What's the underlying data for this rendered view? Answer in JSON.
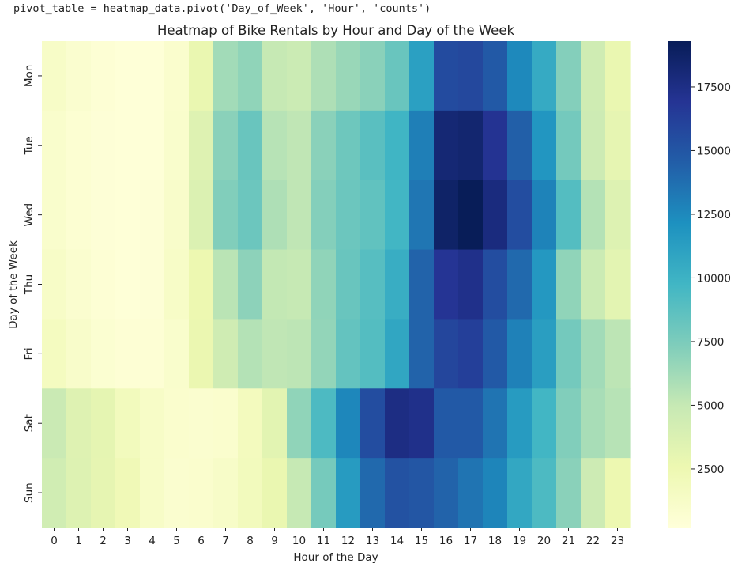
{
  "code": {
    "line": "pivot_table = heatmap_data.pivot('Day_of_Week', 'Hour', 'counts')"
  },
  "chart_data": {
    "type": "heatmap",
    "title": "Heatmap of Bike Rentals by Hour and Day of the Week",
    "xlabel": "Hour of the Day",
    "ylabel": "Day of the Week",
    "x_categories": [
      "0",
      "1",
      "2",
      "3",
      "4",
      "5",
      "6",
      "7",
      "8",
      "9",
      "10",
      "11",
      "12",
      "13",
      "14",
      "15",
      "16",
      "17",
      "18",
      "19",
      "20",
      "21",
      "22",
      "23"
    ],
    "y_categories": [
      "Mon",
      "Tue",
      "Wed",
      "Thu",
      "Fri",
      "Sat",
      "Sun"
    ],
    "values": [
      [
        1300,
        800,
        500,
        300,
        300,
        900,
        2800,
        6200,
        6800,
        5000,
        4700,
        5800,
        6500,
        7000,
        8200,
        11200,
        15600,
        15800,
        14800,
        12500,
        10500,
        7200,
        4500,
        2800
      ],
      [
        1000,
        600,
        400,
        300,
        300,
        1000,
        3500,
        7000,
        8200,
        5500,
        5200,
        7000,
        8000,
        8800,
        9800,
        13000,
        18200,
        18400,
        17000,
        14500,
        11800,
        7800,
        4600,
        3000
      ],
      [
        1000,
        600,
        400,
        300,
        400,
        1100,
        3700,
        7300,
        8100,
        5800,
        5200,
        7200,
        8100,
        8500,
        9700,
        13400,
        18700,
        19300,
        17800,
        15500,
        12800,
        9000,
        5600,
        3600
      ],
      [
        1300,
        800,
        500,
        300,
        400,
        1300,
        2600,
        5400,
        6900,
        5100,
        5000,
        6800,
        8200,
        8900,
        10300,
        14300,
        16900,
        17300,
        15500,
        14000,
        11700,
        6800,
        4700,
        3200
      ],
      [
        1700,
        1100,
        700,
        500,
        500,
        1000,
        2700,
        4500,
        5600,
        5200,
        5300,
        6700,
        8400,
        9000,
        10800,
        14300,
        15900,
        16300,
        14800,
        12900,
        11300,
        7800,
        6200,
        5300
      ],
      [
        4800,
        3500,
        3100,
        1900,
        1300,
        900,
        800,
        900,
        1800,
        3300,
        6800,
        9300,
        12600,
        15500,
        17600,
        17300,
        14800,
        14800,
        13500,
        11500,
        9700,
        7300,
        6000,
        5500
      ],
      [
        4400,
        3600,
        3000,
        2200,
        1300,
        800,
        900,
        1200,
        1900,
        2800,
        5000,
        7700,
        11500,
        14000,
        15200,
        15000,
        14300,
        13500,
        12700,
        10700,
        9300,
        7000,
        4600,
        2600
      ]
    ],
    "colorbar": {
      "min": 200,
      "max": 19300,
      "ticks": [
        2500,
        5000,
        7500,
        10000,
        12500,
        15000,
        17500
      ],
      "colormap": "YlGnBu",
      "stops": [
        "#ffffd9",
        "#edf8b1",
        "#c7e9b4",
        "#7fcdbb",
        "#41b6c4",
        "#1d91c0",
        "#225ea8",
        "#253494",
        "#081d58"
      ]
    },
    "grid": false,
    "legend": "right colorbar"
  }
}
